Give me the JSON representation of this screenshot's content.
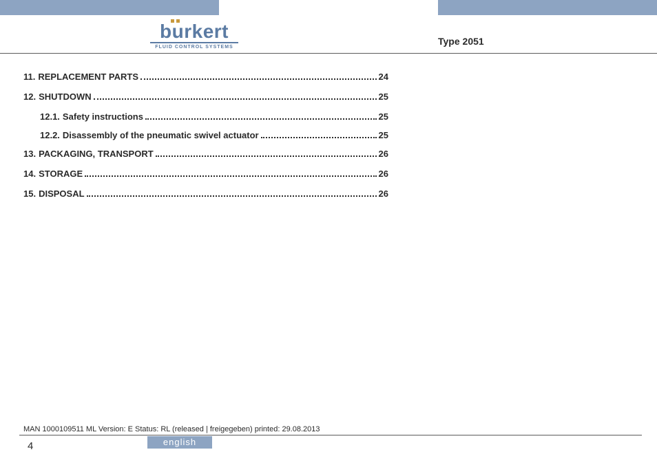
{
  "colors": {
    "bar_blue": "#8da4c2",
    "logo_blue": "#5b7ba3",
    "logo_umlaut": "#c99a3e",
    "text": "#2a2a2a",
    "rule": "#5a5a5a",
    "background": "#ffffff"
  },
  "logo": {
    "wordmark": "burkert",
    "tagline": "FLUID CONTROL SYSTEMS"
  },
  "doc_type": "Type 2051",
  "toc": [
    {
      "level": "major",
      "num": "11.",
      "title": "REPLACEMENT PARTS",
      "page": "24"
    },
    {
      "level": "major",
      "num": "12.",
      "title": "SHUTDOWN",
      "page": "25"
    },
    {
      "level": "minor",
      "num": "12.1.",
      "title": "Safety instructions",
      "page": "25"
    },
    {
      "level": "minor",
      "num": "12.2.",
      "title": "Disassembly of the pneumatic swivel actuator",
      "page": "25"
    },
    {
      "level": "major",
      "num": "13.",
      "title": "PACKAGING, TRANSPORT",
      "page": "26"
    },
    {
      "level": "major",
      "num": "14.",
      "title": "STORAGE",
      "page": "26"
    },
    {
      "level": "major",
      "num": "15.",
      "title": "DISPOSAL",
      "page": "26"
    }
  ],
  "footer": {
    "meta": "MAN 1000109511 ML Version: E Status: RL (released | freigegeben) printed: 29.08.2013",
    "page_number": "4",
    "language": "english"
  }
}
